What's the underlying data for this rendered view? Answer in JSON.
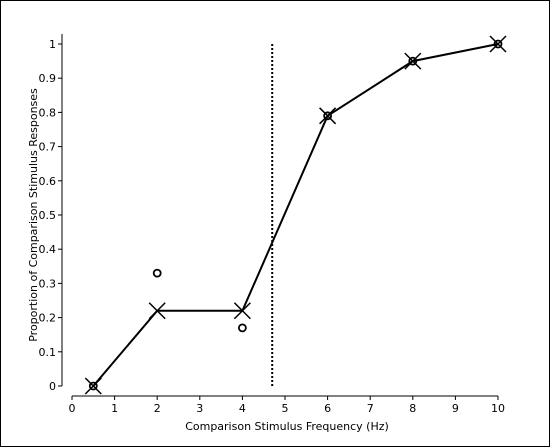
{
  "chart_data": {
    "type": "line",
    "title": "",
    "xlabel": "Comparison Stimulus Frequency (Hz)",
    "ylabel": "Proportion of Comparison Stimulus Responses",
    "xlim": [
      0,
      10
    ],
    "ylim": [
      0,
      1
    ],
    "x_ticks": [
      "0",
      "1",
      "2",
      "3",
      "4",
      "5",
      "6",
      "7",
      "8",
      "9",
      "10"
    ],
    "y_ticks": [
      "0",
      "0.1",
      "0.2",
      "0.3",
      "0.4",
      "0.5",
      "0.6",
      "0.7",
      "0.8",
      "0.9",
      "1"
    ],
    "grid": false,
    "vertical_line_x": 4.7,
    "series": [
      {
        "marker": "x",
        "line": "solid",
        "x": [
          0.5,
          2,
          4,
          6,
          8,
          10
        ],
        "y": [
          0,
          0.22,
          0.22,
          0.79,
          0.95,
          1.0
        ]
      },
      {
        "marker": "o",
        "line": "none",
        "x": [
          0.5,
          2,
          4,
          6,
          8,
          10
        ],
        "y": [
          0,
          0.33,
          0.17,
          0.79,
          0.95,
          1.0
        ]
      }
    ]
  }
}
